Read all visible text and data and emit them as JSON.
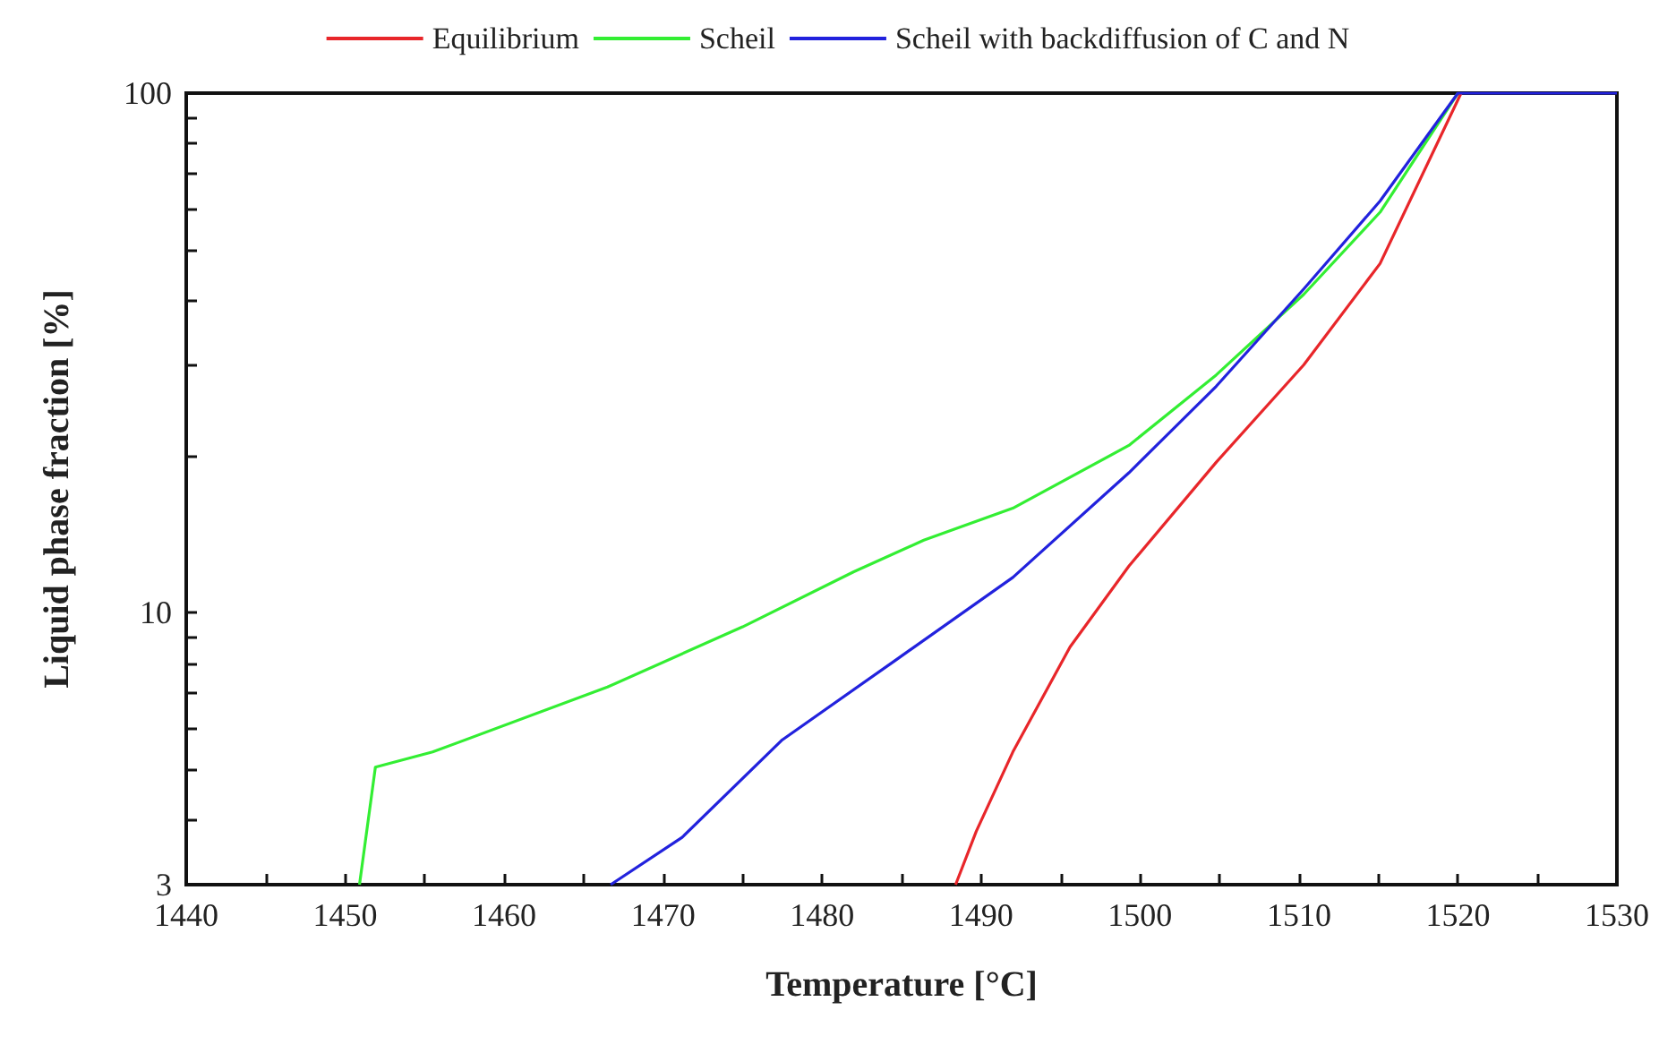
{
  "chart_data": {
    "type": "line",
    "xlabel": "Temperature [°C]",
    "ylabel": "Liquid phase fraction [%]",
    "log": "y",
    "marker": "none",
    "legend": "top",
    "xlim": [
      1440,
      1530
    ],
    "ylim": [
      3,
      100
    ],
    "xticks": [
      1440,
      {
        "value": 1445,
        "label": null
      },
      1450,
      {
        "value": 1455,
        "label": null
      },
      1460,
      {
        "value": 1465,
        "label": null
      },
      1470,
      {
        "value": 1475,
        "label": null
      },
      1480,
      {
        "value": 1485,
        "label": null
      },
      1490,
      {
        "value": 1495,
        "label": null
      },
      1500,
      {
        "value": 1505,
        "label": null
      },
      1510,
      {
        "value": 1515,
        "label": null
      },
      1520,
      {
        "value": 1525,
        "label": null
      },
      1530
    ],
    "yticks": [
      3,
      {
        "value": 4,
        "label": null
      },
      {
        "value": 5,
        "label": null
      },
      {
        "value": 6,
        "label": null
      },
      {
        "value": 7,
        "label": null
      },
      {
        "value": 8,
        "label": null
      },
      {
        "value": 9,
        "label": null
      },
      10,
      {
        "value": 20,
        "label": null
      },
      {
        "value": 30,
        "label": null
      },
      {
        "value": 40,
        "label": null
      },
      {
        "value": 50,
        "label": null
      },
      {
        "value": 60,
        "label": null
      },
      {
        "value": 70,
        "label": null
      },
      {
        "value": 80,
        "label": null
      },
      {
        "value": 90,
        "label": null
      },
      100
    ],
    "series": [
      {
        "name": "Equilibrium",
        "color": "#e8262a",
        "x": [
          1488.4,
          1489.7,
          1492,
          1495.6,
          1499.3,
          1504.8,
          1510.3,
          1515.1,
          1520.2
        ],
        "values": [
          3,
          3.8,
          5.4,
          8.6,
          12.3,
          19.5,
          30,
          47,
          100
        ]
      },
      {
        "name": "Scheil",
        "color": "#33ee33",
        "x": [
          1450.9,
          1451.9,
          1455.5,
          1466.5,
          1475,
          1482,
          1486.4,
          1492,
          1499.3,
          1504.8,
          1510.3,
          1515.1,
          1520
        ],
        "values": [
          3,
          5.05,
          5.4,
          7.2,
          9.4,
          12,
          13.8,
          15.9,
          21,
          28.7,
          41,
          59,
          100
        ]
      },
      {
        "name": "Scheil with backdiffusion of C and N",
        "color": "#2222dd",
        "x": [
          1466.7,
          1471.2,
          1477.5,
          1484.6,
          1492,
          1499.3,
          1504.8,
          1510.3,
          1515.1,
          1520,
          1530
        ],
        "values": [
          3,
          3.7,
          5.7,
          8.1,
          11.7,
          18.6,
          27.3,
          42,
          62,
          100,
          100
        ]
      }
    ]
  }
}
